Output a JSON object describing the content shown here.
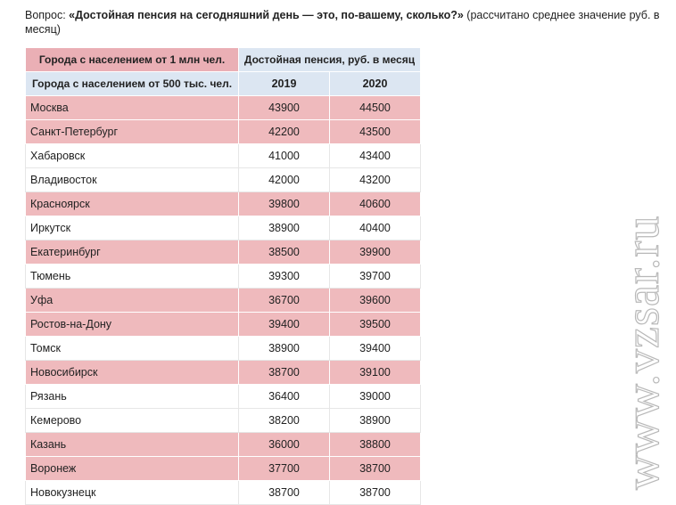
{
  "question": {
    "prefix": "Вопрос: ",
    "bold": "«Достойная пенсия на сегодняшний день — это, по-вашему, сколько?»",
    "suffix": " (рассчитано среднее значение руб. в месяц)"
  },
  "table": {
    "header_city_1mln": "Города с населением от 1 млн чел.",
    "header_pension": "Достойная пенсия, руб. в месяц",
    "header_city_500k": "Города с населением от 500 тыс. чел.",
    "year_1": "2019",
    "year_2": "2020",
    "rows": [
      {
        "city": "Москва",
        "v2019": "43900",
        "v2020": "44500",
        "group": "1mln"
      },
      {
        "city": "Санкт-Петербург",
        "v2019": "42200",
        "v2020": "43500",
        "group": "1mln"
      },
      {
        "city": "Хабаровск",
        "v2019": "41000",
        "v2020": "43400",
        "group": "500k"
      },
      {
        "city": "Владивосток",
        "v2019": "42000",
        "v2020": "43200",
        "group": "500k"
      },
      {
        "city": "Красноярск",
        "v2019": "39800",
        "v2020": "40600",
        "group": "1mln"
      },
      {
        "city": "Иркутск",
        "v2019": "38900",
        "v2020": "40400",
        "group": "500k"
      },
      {
        "city": "Екатеринбург",
        "v2019": "38500",
        "v2020": "39900",
        "group": "1mln"
      },
      {
        "city": "Тюмень",
        "v2019": "39300",
        "v2020": "39700",
        "group": "500k"
      },
      {
        "city": "Уфа",
        "v2019": "36700",
        "v2020": "39600",
        "group": "1mln"
      },
      {
        "city": "Ростов-на-Дону",
        "v2019": "39400",
        "v2020": "39500",
        "group": "1mln"
      },
      {
        "city": "Томск",
        "v2019": "38900",
        "v2020": "39400",
        "group": "500k"
      },
      {
        "city": "Новосибирск",
        "v2019": "38700",
        "v2020": "39100",
        "group": "1mln"
      },
      {
        "city": "Рязань",
        "v2019": "36400",
        "v2020": "39000",
        "group": "500k"
      },
      {
        "city": "Кемерово",
        "v2019": "38200",
        "v2020": "38900",
        "group": "500k"
      },
      {
        "city": "Казань",
        "v2019": "36000",
        "v2020": "38800",
        "group": "1mln"
      },
      {
        "city": "Воронеж",
        "v2019": "37700",
        "v2020": "38700",
        "group": "1mln"
      },
      {
        "city": "Новокузнецк",
        "v2019": "38700",
        "v2020": "38700",
        "group": "500k"
      }
    ]
  },
  "watermark": "www.vzsar.ru",
  "colors": {
    "pink_row": "#efbabd",
    "header_blue": "#dce6f2",
    "header_pink": "#eaafb5"
  }
}
